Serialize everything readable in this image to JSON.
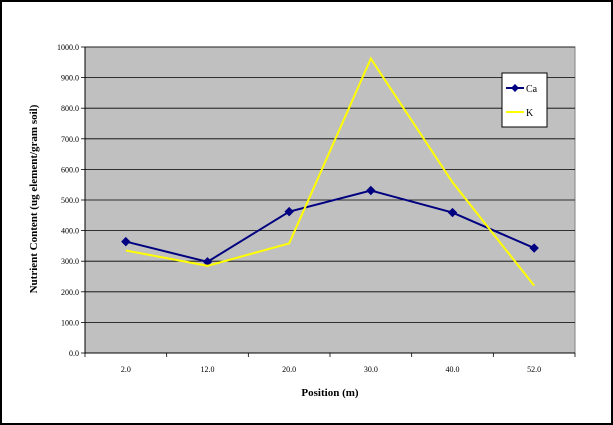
{
  "chart_data": {
    "type": "line",
    "categories": [
      "2.0",
      "12.0",
      "20.0",
      "30.0",
      "40.0",
      "52.0"
    ],
    "series": [
      {
        "name": "Ca",
        "values": [
          364,
          298,
          462,
          531,
          459,
          343
        ],
        "color": "#000080",
        "marker": "diamond"
      },
      {
        "name": "K",
        "values": [
          335,
          285,
          358,
          962,
          558,
          220
        ],
        "color": "#FFFF00",
        "marker": "none"
      }
    ],
    "xlabel": "Position (m)",
    "ylabel": "Nutrient Content (ug element/gram soil)",
    "ylim": [
      0,
      1000
    ],
    "y_ticks": [
      "0.0",
      "100.0",
      "200.0",
      "300.0",
      "400.0",
      "500.0",
      "600.0",
      "700.0",
      "800.0",
      "900.0",
      "1000.0"
    ],
    "plot_background": "#C0C0C0",
    "grid": true,
    "legend_position": "right"
  }
}
